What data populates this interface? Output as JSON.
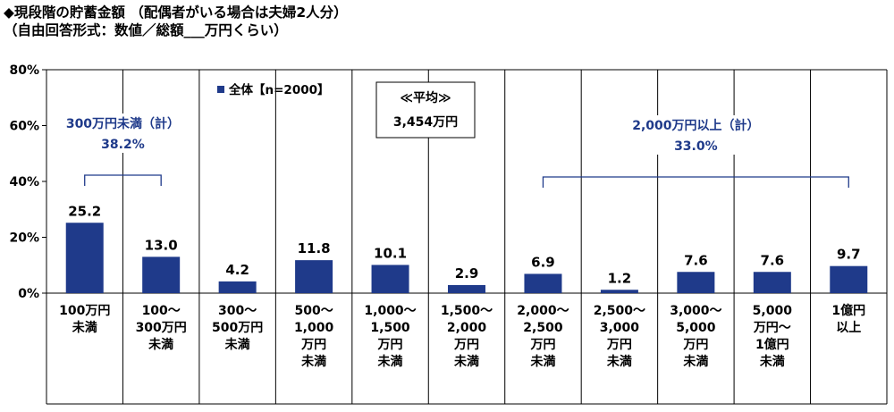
{
  "title_line1": "◆現段階の貯蓄金額 （配偶者がいる場合は夫婦2人分）",
  "title_line2": "（自由回答形式：数値／総額___万円くらい）",
  "chart_data": {
    "type": "bar",
    "categories": [
      [
        "100万円",
        "未満"
      ],
      [
        "100～",
        "300万円",
        "未満"
      ],
      [
        "300～",
        "500万円",
        "未満"
      ],
      [
        "500～",
        "1,000",
        "万円",
        "未満"
      ],
      [
        "1,000～",
        "1,500",
        "万円",
        "未満"
      ],
      [
        "1,500～",
        "2,000",
        "万円",
        "未満"
      ],
      [
        "2,000～",
        "2,500",
        "万円",
        "未満"
      ],
      [
        "2,500～",
        "3,000",
        "万円",
        "未満"
      ],
      [
        "3,000～",
        "5,000",
        "万円",
        "未満"
      ],
      [
        "5,000",
        "万円～",
        "1億円",
        "未満"
      ],
      [
        "1億円",
        "以上"
      ]
    ],
    "series": [
      {
        "name": "全体【n=2000】",
        "values": [
          25.2,
          13.0,
          4.2,
          11.8,
          10.1,
          2.9,
          6.9,
          1.2,
          7.6,
          7.6,
          9.7
        ]
      }
    ],
    "value_labels": [
      "25.2",
      "13.0",
      "4.2",
      "11.8",
      "10.1",
      "2.9",
      "6.9",
      "1.2",
      "7.6",
      "7.6",
      "9.7"
    ],
    "ylim": [
      0,
      80
    ],
    "yticks": [
      0,
      20,
      40,
      60,
      80
    ],
    "ytick_labels": [
      "0%",
      "20%",
      "40%",
      "60%",
      "80%"
    ],
    "legend_label": "全体【n=2000】",
    "bar_color": "#1f3a8a",
    "accent_text_color": "#1f3a8a",
    "average_box": {
      "line1": "≪平均≫",
      "line2": "3,454万円"
    },
    "annotations": [
      {
        "line1": "300万円未満（計）",
        "line2": "38.2%",
        "from_index": 0,
        "to_index": 1
      },
      {
        "line1": "2,000万円以上（計）",
        "line2": "33.0%",
        "from_index": 6,
        "to_index": 10
      }
    ]
  }
}
